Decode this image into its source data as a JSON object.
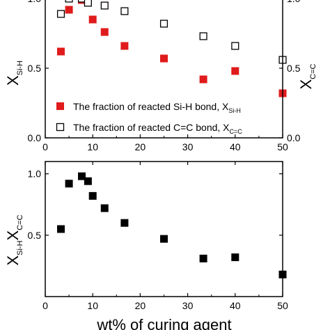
{
  "chart_data": [
    {
      "type": "scatter",
      "title": "",
      "xlabel": "",
      "ylabel": {
        "main": "X",
        "sub": "Si-H"
      },
      "y2label": {
        "main": "X",
        "sub": "C=C"
      },
      "xlim": [
        0,
        50
      ],
      "ylim": [
        0,
        1.05
      ],
      "y2lim": [
        0,
        1.05
      ],
      "x_ticks": [
        "0",
        "10",
        "20",
        "30",
        "40",
        "50"
      ],
      "y_ticks": [
        "0.0",
        "0.5",
        "1.0"
      ],
      "y2_ticks": [
        "0.0",
        "0.5",
        "1.0"
      ],
      "grid": false,
      "legend_position": "bottom-right",
      "series": [
        {
          "name": {
            "main": "The fraction of reacted Si-H bond, X",
            "sub": "Si-H"
          },
          "marker": "filled-square",
          "color": "#e01b1b",
          "x": [
            3.3,
            5,
            7.7,
            9,
            10,
            12.5,
            16.7,
            25,
            33.3,
            40,
            50
          ],
          "y": [
            0.62,
            0.92,
            0.99,
            0.98,
            0.85,
            0.76,
            0.66,
            0.57,
            0.42,
            0.48,
            0.32
          ]
        },
        {
          "name": {
            "main": "The fraction of reacted C=C bond, X",
            "sub": "C=C"
          },
          "marker": "open-square",
          "color": "#000000",
          "x": [
            3.3,
            5,
            7.7,
            9,
            12.5,
            16.7,
            25,
            33.3,
            40,
            50
          ],
          "y": [
            0.89,
            1.0,
            1.0,
            0.97,
            0.95,
            0.91,
            0.82,
            0.73,
            0.66,
            0.56
          ]
        }
      ]
    },
    {
      "type": "scatter",
      "title": "",
      "xlabel": "wt% of curing agent",
      "ylabel": {
        "main1": "X",
        "sub1": "Si-H",
        "main2": "X",
        "sub2": "C=C"
      },
      "xlim": [
        0,
        50
      ],
      "ylim": [
        0,
        1.1
      ],
      "x_ticks": [
        "0",
        "10",
        "20",
        "30",
        "40",
        "50"
      ],
      "y_ticks": [
        "0.5",
        "1.0"
      ],
      "grid": false,
      "series": [
        {
          "marker": "filled-square",
          "color": "#000000",
          "x": [
            3.3,
            5,
            7.7,
            9,
            10,
            12.5,
            16.7,
            25,
            33.3,
            40,
            50
          ],
          "y": [
            0.55,
            0.92,
            0.98,
            0.94,
            0.82,
            0.72,
            0.6,
            0.47,
            0.31,
            0.32,
            0.18
          ]
        }
      ]
    }
  ]
}
